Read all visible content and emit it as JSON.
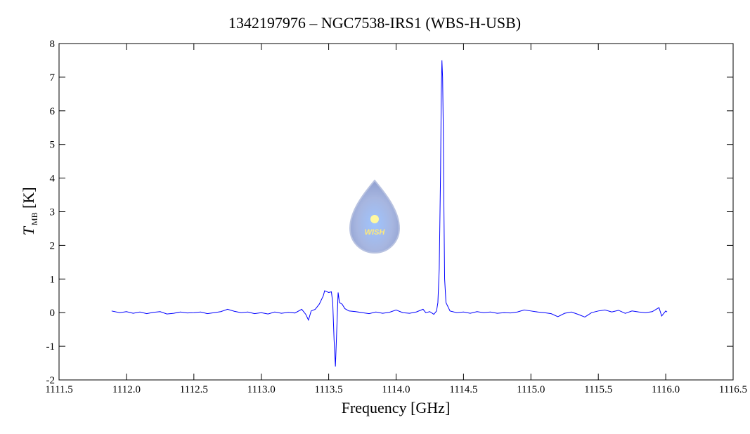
{
  "chart_data": {
    "type": "line",
    "title": "1342197976 – NGC7538-IRS1 (WBS-H-USB)",
    "xlabel": "Frequency [GHz]",
    "ylabel": "T",
    "ylabel_sub": "MB",
    "ylabel_unit": "[K]",
    "logo_text": "WISH",
    "xlim": [
      1111.5,
      1116.5
    ],
    "xticks": [
      {
        "value": 1111.5,
        "label": "1111.5"
      },
      {
        "value": 1112,
        "label": "1112.0"
      },
      {
        "value": 1112.5,
        "label": "1112.5"
      },
      {
        "value": 1113,
        "label": "1113.0"
      },
      {
        "value": 1113.5,
        "label": "1113.5"
      },
      {
        "value": 1114,
        "label": "1114.0"
      },
      {
        "value": 1114.5,
        "label": "1114.5"
      },
      {
        "value": 1115,
        "label": "1115.0"
      },
      {
        "value": 1115.5,
        "label": "1115.5"
      },
      {
        "value": 1116,
        "label": "1116.0"
      },
      {
        "value": 1116.5,
        "label": "1116.5"
      }
    ],
    "ylim": [
      -2,
      8
    ],
    "yticks": [
      -2,
      -1,
      0,
      1,
      2,
      3,
      4,
      5,
      6,
      7,
      8
    ],
    "x": [
      1111.89,
      1111.95,
      1112.0,
      1112.05,
      1112.1,
      1112.15,
      1112.2,
      1112.25,
      1112.3,
      1112.35,
      1112.4,
      1112.45,
      1112.5,
      1112.55,
      1112.6,
      1112.65,
      1112.7,
      1112.75,
      1112.8,
      1112.85,
      1112.9,
      1112.95,
      1113.0,
      1113.05,
      1113.1,
      1113.15,
      1113.2,
      1113.25,
      1113.3,
      1113.33,
      1113.35,
      1113.37,
      1113.4,
      1113.43,
      1113.46,
      1113.47,
      1113.5,
      1113.52,
      1113.53,
      1113.54,
      1113.55,
      1113.56,
      1113.57,
      1113.58,
      1113.6,
      1113.62,
      1113.65,
      1113.7,
      1113.75,
      1113.8,
      1113.85,
      1113.9,
      1113.95,
      1114.0,
      1114.05,
      1114.1,
      1114.15,
      1114.2,
      1114.22,
      1114.25,
      1114.28,
      1114.3,
      1114.31,
      1114.32,
      1114.33,
      1114.335,
      1114.34,
      1114.345,
      1114.35,
      1114.355,
      1114.36,
      1114.37,
      1114.4,
      1114.45,
      1114.5,
      1114.55,
      1114.6,
      1114.65,
      1114.7,
      1114.75,
      1114.8,
      1114.85,
      1114.9,
      1114.95,
      1115.0,
      1115.05,
      1115.1,
      1115.15,
      1115.2,
      1115.25,
      1115.3,
      1115.35,
      1115.4,
      1115.45,
      1115.5,
      1115.55,
      1115.6,
      1115.65,
      1115.7,
      1115.75,
      1115.8,
      1115.85,
      1115.9,
      1115.95,
      1115.97,
      1116.0,
      1116.01
    ],
    "series": [
      {
        "color": "#0000ff",
        "values": [
          0.05,
          0.0,
          0.03,
          -0.02,
          0.02,
          -0.03,
          0.01,
          0.03,
          -0.04,
          -0.02,
          0.02,
          -0.01,
          0.0,
          0.02,
          -0.03,
          0.0,
          0.03,
          0.1,
          0.04,
          0.0,
          0.02,
          -0.03,
          0.0,
          -0.04,
          0.02,
          -0.02,
          0.01,
          -0.01,
          0.1,
          -0.05,
          -0.22,
          0.05,
          0.1,
          0.25,
          0.5,
          0.65,
          0.6,
          0.62,
          0.3,
          -0.8,
          -1.6,
          -0.5,
          0.6,
          0.3,
          0.25,
          0.12,
          0.05,
          0.03,
          0.0,
          -0.03,
          0.02,
          -0.02,
          0.01,
          0.08,
          0.0,
          -0.02,
          0.02,
          0.1,
          0.0,
          0.03,
          -0.05,
          0.05,
          0.3,
          1.3,
          4.2,
          6.5,
          7.5,
          7.0,
          5.5,
          3.0,
          1.0,
          0.3,
          0.05,
          0.0,
          0.02,
          -0.02,
          0.03,
          0.0,
          0.02,
          -0.02,
          0.0,
          -0.01,
          0.02,
          0.08,
          0.05,
          0.02,
          0.0,
          -0.03,
          -0.12,
          -0.02,
          0.02,
          -0.05,
          -0.13,
          0.0,
          0.05,
          0.08,
          0.02,
          0.07,
          -0.02,
          0.05,
          0.02,
          0.0,
          0.03,
          0.15,
          -0.1,
          0.05,
          0.02
        ]
      }
    ]
  }
}
